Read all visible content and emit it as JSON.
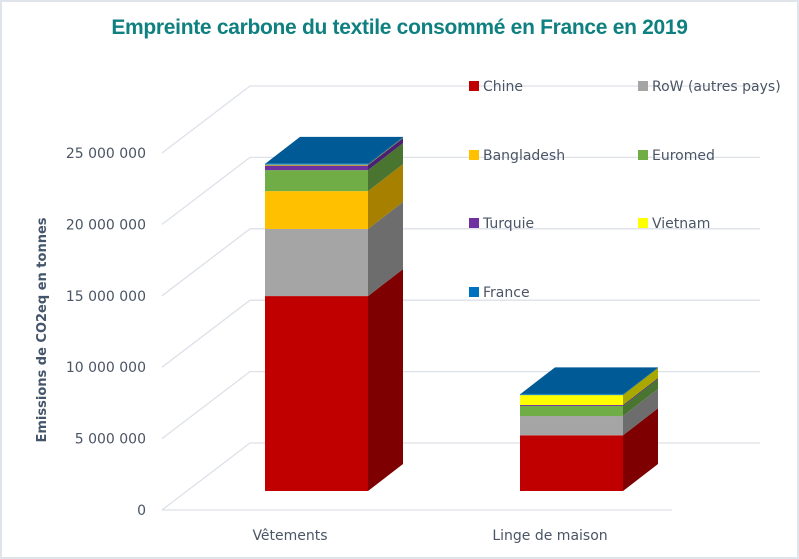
{
  "chart_data": {
    "type": "bar",
    "stacked": true,
    "three_d": true,
    "title": "Empreinte carbone du textile consommé en France en 2019",
    "xlabel": "",
    "ylabel": "Emissions de CO2eq en tonnes",
    "ylim": [
      0,
      25000000
    ],
    "yticks": [
      0,
      5000000,
      10000000,
      15000000,
      20000000,
      25000000
    ],
    "ytick_labels": [
      "0",
      "5 000 000",
      "10 000 000",
      "15 000 000",
      "20 000 000",
      "25 000 000"
    ],
    "categories": [
      "Vêtements",
      "Linge de maison"
    ],
    "legend_position": "top-right",
    "grid": true,
    "series": [
      {
        "name": "Chine",
        "color": "#c00000",
        "side": "#7f0000",
        "values": [
          13650000,
          3900000
        ]
      },
      {
        "name": "RoW (autres pays)",
        "color": "#a5a5a5",
        "side": "#6d6d6d",
        "values": [
          4700000,
          1350000
        ]
      },
      {
        "name": "Bangladesh",
        "color": "#ffc000",
        "side": "#a88000",
        "values": [
          2650000,
          0
        ]
      },
      {
        "name": "Euromed",
        "color": "#70ad47",
        "side": "#4a7530",
        "values": [
          1470000,
          700000
        ]
      },
      {
        "name": "Turquie",
        "color": "#7030a0",
        "side": "#4a2070",
        "values": [
          350000,
          70000
        ]
      },
      {
        "name": "Vietnam",
        "color": "#ffff00",
        "side": "#a8a800",
        "values": [
          30000,
          700000
        ]
      },
      {
        "name": "France",
        "color": "#0070c0",
        "side": "#00568f",
        "top": "#005a96",
        "values": [
          60000,
          50000
        ]
      }
    ]
  }
}
